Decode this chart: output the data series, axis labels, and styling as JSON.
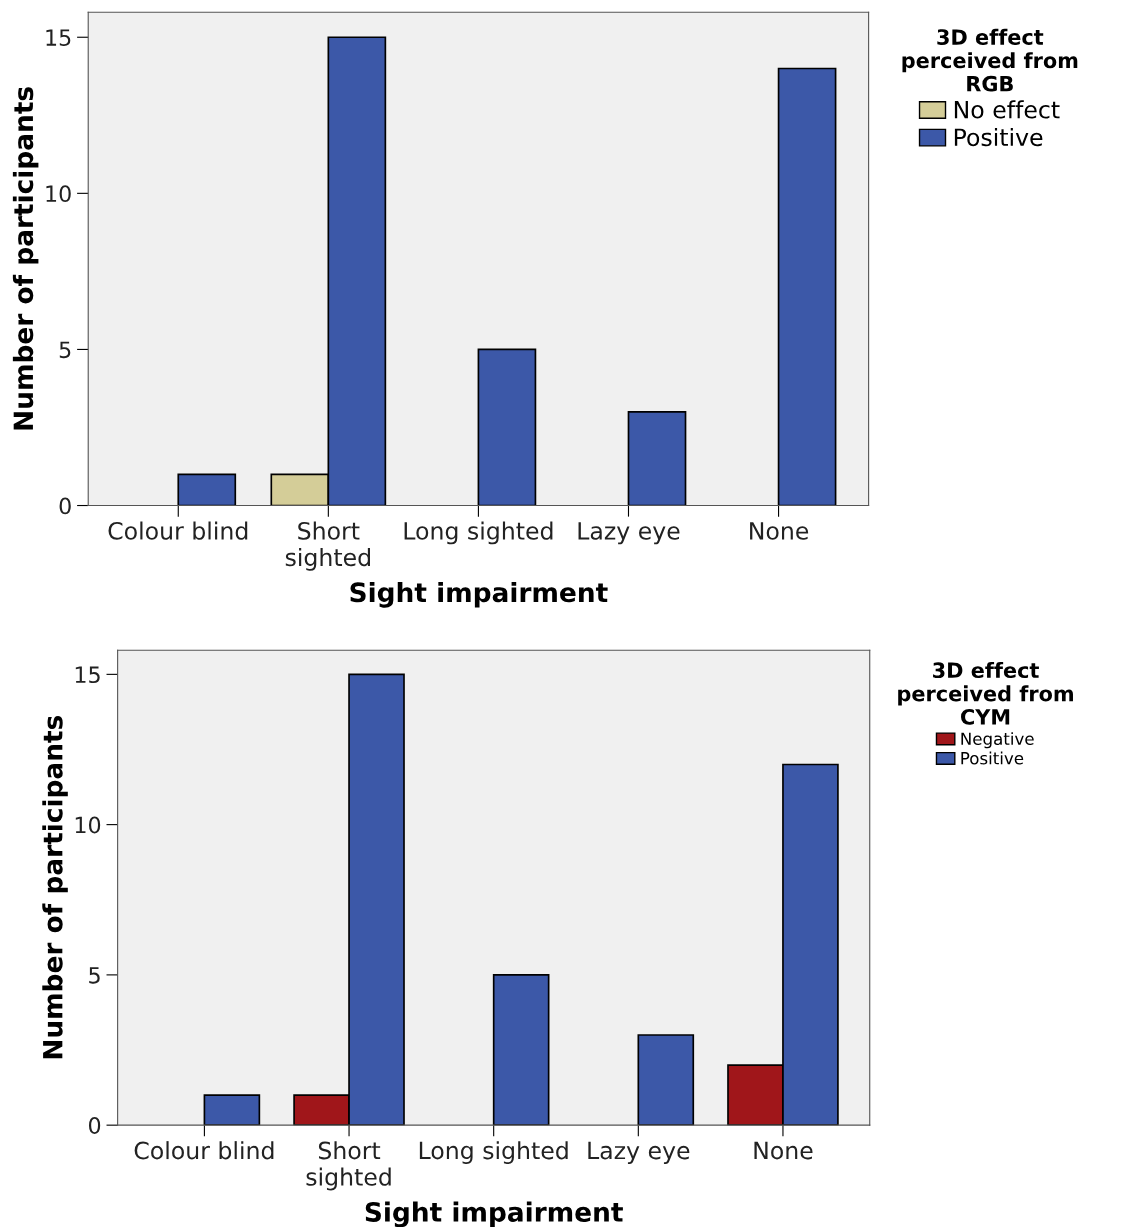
{
  "chart_data": [
    {
      "type": "bar",
      "xlabel": "Sight impairment",
      "ylabel": "Number of participants",
      "legend_title": "3D effect\nperceived from\nRGB",
      "categories": [
        "Colour blind",
        "Short\nsighted",
        "Long sighted",
        "Lazy eye",
        "None"
      ],
      "series": [
        {
          "name": "No effect",
          "color": "#d4cd98",
          "values": [
            null,
            1,
            null,
            null,
            null
          ]
        },
        {
          "name": "Positive",
          "color": "#3c58a8",
          "values": [
            1,
            15,
            5,
            3,
            14
          ]
        }
      ],
      "ylim": [
        0,
        15.8
      ],
      "yticks": [
        0,
        5,
        10,
        15
      ],
      "grid": false,
      "legend": "top right"
    },
    {
      "type": "bar",
      "xlabel": "Sight impairment",
      "ylabel": "Number of participants",
      "legend_title": "3D effect\nperceived from\nCYM",
      "categories": [
        "Colour blind",
        "Short\nsighted",
        "Long sighted",
        "Lazy eye",
        "None"
      ],
      "series": [
        {
          "name": "Negative",
          "color": "#a0161a",
          "values": [
            null,
            1,
            null,
            null,
            2
          ]
        },
        {
          "name": "Positive",
          "color": "#3c58a8",
          "values": [
            1,
            15,
            5,
            3,
            12
          ]
        }
      ],
      "ylim": [
        0,
        15.8
      ],
      "yticks": [
        0,
        5,
        10,
        15
      ],
      "grid": false,
      "legend": "top right"
    }
  ]
}
